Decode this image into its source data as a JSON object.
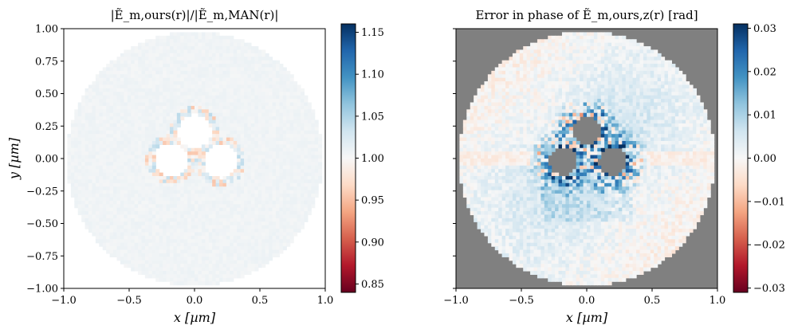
{
  "chart_data": [
    {
      "type": "heatmap",
      "title": "|Ẽ_m,ours(r)|/|Ẽ_m,MAN(r)|",
      "xlabel": "x [µm]",
      "ylabel": "y [µm]",
      "xlim": [
        -1.0,
        1.0
      ],
      "ylim": [
        -1.0,
        1.0
      ],
      "xticks": [
        "−1.0",
        "−0.5",
        "0.0",
        "0.5",
        "1.0"
      ],
      "yticks": [
        "1.00",
        "0.75",
        "0.50",
        "0.25",
        "0.00",
        "−0.25",
        "−0.50",
        "−0.75",
        "−1.00"
      ],
      "colorbar": {
        "min": 0.84,
        "max": 1.16,
        "ticks": [
          "1.15",
          "1.10",
          "1.05",
          "1.00",
          "0.95",
          "0.90",
          "0.85"
        ],
        "colormap": "RdBu"
      },
      "background": "#ffffff",
      "domain_radius": 0.98,
      "holes": [
        {
          "cx": 0.0,
          "cy": 0.21,
          "r": 0.13
        },
        {
          "cx": -0.18,
          "cy": -0.01,
          "r": 0.13
        },
        {
          "cx": 0.2,
          "cy": -0.02,
          "r": 0.13
        }
      ]
    },
    {
      "type": "heatmap",
      "title": "Error in phase of Ẽ_m,ours,z(r) [rad]",
      "xlabel": "x [µm]",
      "ylabel": "",
      "xlim": [
        -1.0,
        1.0
      ],
      "ylim": [
        -1.0,
        1.0
      ],
      "xticks": [
        "−1.0",
        "−0.5",
        "0.0",
        "0.5",
        "1.0"
      ],
      "yticks": [],
      "colorbar": {
        "min": -0.031,
        "max": 0.031,
        "ticks": [
          "0.03",
          "0.02",
          "0.01",
          "0.00",
          "−0.01",
          "−0.02",
          "−0.03"
        ],
        "colormap": "RdBu"
      },
      "background": "#808080",
      "domain_radius": 0.98,
      "holes": [
        {
          "cx": 0.0,
          "cy": 0.21,
          "r": 0.11
        },
        {
          "cx": -0.18,
          "cy": -0.02,
          "r": 0.11
        },
        {
          "cx": 0.2,
          "cy": -0.02,
          "r": 0.11
        }
      ]
    }
  ]
}
